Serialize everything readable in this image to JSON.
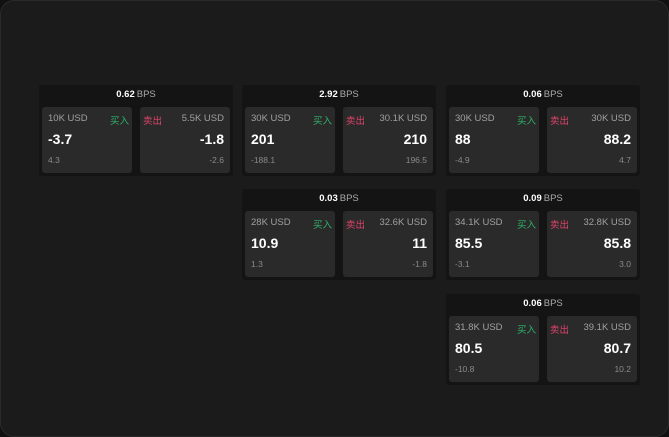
{
  "unit": "BPS",
  "buy_label": "买入",
  "sell_label": "卖出",
  "colors": {
    "buy": "#2fb36a",
    "sell": "#e0436b"
  },
  "cards": [
    {
      "col": 0,
      "row": 0,
      "spread": "0.62",
      "bid": {
        "size": "10K USD",
        "price": "-3.7",
        "change": "4.3"
      },
      "ask": {
        "size": "5.5K USD",
        "price": "-1.8",
        "change": "-2.6"
      }
    },
    {
      "col": 1,
      "row": 0,
      "spread": "2.92",
      "bid": {
        "size": "30K USD",
        "price": "201",
        "change": "-188.1"
      },
      "ask": {
        "size": "30.1K USD",
        "price": "210",
        "change": "196.5"
      }
    },
    {
      "col": 2,
      "row": 0,
      "spread": "0.06",
      "bid": {
        "size": "30K USD",
        "price": "88",
        "change": "-4.9"
      },
      "ask": {
        "size": "30K USD",
        "price": "88.2",
        "change": "4.7"
      }
    },
    {
      "col": 1,
      "row": 1,
      "spread": "0.03",
      "bid": {
        "size": "28K USD",
        "price": "10.9",
        "change": "1.3"
      },
      "ask": {
        "size": "32.6K USD",
        "price": "11",
        "change": "-1.8"
      }
    },
    {
      "col": 2,
      "row": 1,
      "spread": "0.09",
      "bid": {
        "size": "34.1K USD",
        "price": "85.5",
        "change": "-3.1"
      },
      "ask": {
        "size": "32.8K USD",
        "price": "85.8",
        "change": "3.0"
      }
    },
    {
      "col": 2,
      "row": 2,
      "spread": "0.06",
      "bid": {
        "size": "31.8K USD",
        "price": "80.5",
        "change": "-10.8"
      },
      "ask": {
        "size": "39.1K USD",
        "price": "80.7",
        "change": "10.2"
      }
    }
  ]
}
